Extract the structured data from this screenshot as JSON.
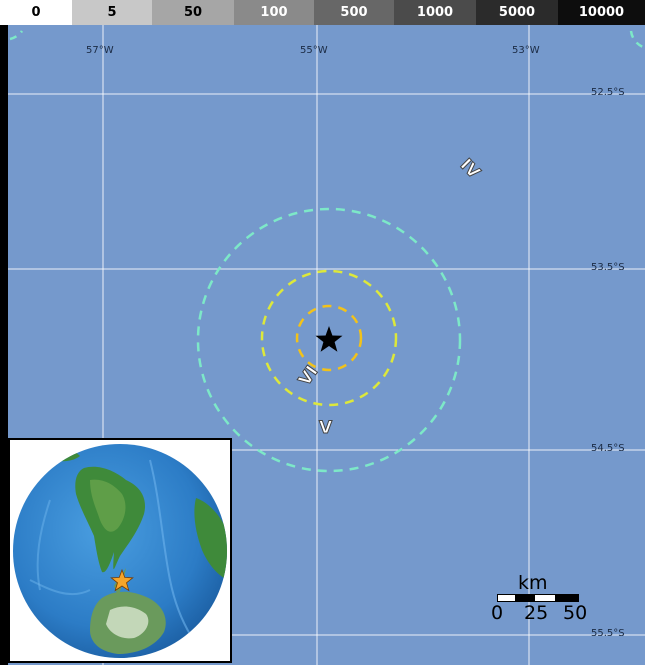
{
  "population_legend": {
    "cells": [
      {
        "label": "0",
        "bg": "#ffffff",
        "fg": "#000000"
      },
      {
        "label": "5",
        "bg": "#c8c8c8",
        "fg": "#000000"
      },
      {
        "label": "50",
        "bg": "#a6a6a6",
        "fg": "#000000"
      },
      {
        "label": "100",
        "bg": "#8a8a8a",
        "fg": "#ffffff"
      },
      {
        "label": "500",
        "bg": "#676767",
        "fg": "#ffffff"
      },
      {
        "label": "1000",
        "bg": "#4b4b4b",
        "fg": "#ffffff"
      },
      {
        "label": "5000",
        "bg": "#2b2b2b",
        "fg": "#ffffff"
      },
      {
        "label": "10000",
        "bg": "#0d0d0d",
        "fg": "#ffffff"
      }
    ]
  },
  "map": {
    "ocean_color": "#7599cc",
    "graticule_color": "#ffffff",
    "longitude_labels": [
      "57°W",
      "55°W",
      "53°W"
    ],
    "latitude_labels": [
      "52.5°S",
      "53.5°S",
      "54.5°S",
      "55.5°S"
    ],
    "epicenter_icon": "star-icon",
    "intensity_labels": [
      "IV",
      "VI",
      "V"
    ],
    "contours": [
      {
        "name": "VI-inner",
        "color": "#f2c21a"
      },
      {
        "name": "VI-outer",
        "color": "#dde83a"
      },
      {
        "name": "V",
        "color": "#7de8c8"
      }
    ]
  },
  "scale_bar": {
    "unit": "km",
    "ticks": [
      "0",
      "25",
      "50"
    ]
  },
  "inset": {
    "marker_icon": "orange-star-icon",
    "marker_color": "#f5a52a"
  }
}
